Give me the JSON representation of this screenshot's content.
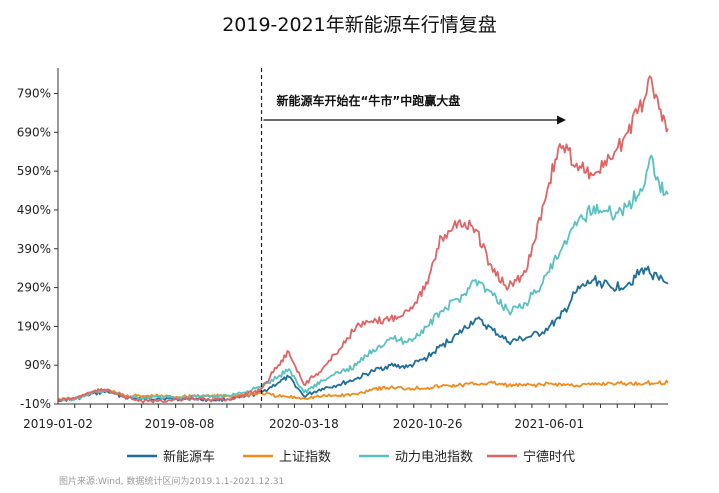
{
  "chart_data": {
    "type": "line",
    "title": "2019-2021年新能源车行情复盘",
    "xlabel": "",
    "ylabel": "",
    "x_range": [
      "2019-01-02",
      "2021-12-31"
    ],
    "ylim": [
      -10,
      830
    ],
    "y_ticks": [
      "-10%",
      "90%",
      "190%",
      "290%",
      "390%",
      "490%",
      "590%",
      "690%",
      "790%"
    ],
    "y_tick_values": [
      -10,
      90,
      190,
      290,
      390,
      490,
      590,
      690,
      790
    ],
    "x_ticks": [
      "2019-01-02",
      "2019-08-08",
      "2020-03-18",
      "2020-10-26",
      "2021-06-01"
    ],
    "x_tick_dates": [
      "2019-01-02",
      "2019-08-08",
      "2020-03-18",
      "2020-10-26",
      "2021-06-01"
    ],
    "grid": false,
    "legend_position": "bottom",
    "annotation": {
      "text": "新能源车开始在“牛市”中跑赢大盘",
      "date": "2020-01-02"
    },
    "series": [
      {
        "name": "新能源车",
        "color": "#1f6e9a",
        "points": [
          [
            "2019-01-02",
            0
          ],
          [
            "2019-02-01",
            2
          ],
          [
            "2019-03-01",
            15
          ],
          [
            "2019-04-01",
            22
          ],
          [
            "2019-05-01",
            8
          ],
          [
            "2019-06-01",
            3
          ],
          [
            "2019-07-01",
            5
          ],
          [
            "2019-08-08",
            2
          ],
          [
            "2019-09-01",
            4
          ],
          [
            "2019-10-01",
            0
          ],
          [
            "2019-11-01",
            2
          ],
          [
            "2019-12-02",
            8
          ],
          [
            "2020-01-02",
            20
          ],
          [
            "2020-02-01",
            45
          ],
          [
            "2020-02-20",
            60
          ],
          [
            "2020-03-18",
            10
          ],
          [
            "2020-04-20",
            30
          ],
          [
            "2020-05-20",
            40
          ],
          [
            "2020-06-20",
            55
          ],
          [
            "2020-07-20",
            75
          ],
          [
            "2020-08-20",
            90
          ],
          [
            "2020-09-20",
            85
          ],
          [
            "2020-10-26",
            110
          ],
          [
            "2020-11-20",
            140
          ],
          [
            "2020-12-20",
            170
          ],
          [
            "2021-01-20",
            210
          ],
          [
            "2021-02-20",
            180
          ],
          [
            "2021-03-20",
            150
          ],
          [
            "2021-04-20",
            160
          ],
          [
            "2021-05-20",
            175
          ],
          [
            "2021-06-01",
            190
          ],
          [
            "2021-06-20",
            210
          ],
          [
            "2021-07-20",
            280
          ],
          [
            "2021-08-20",
            310
          ],
          [
            "2021-09-20",
            290
          ],
          [
            "2021-10-20",
            300
          ],
          [
            "2021-11-20",
            340
          ],
          [
            "2021-12-15",
            310
          ],
          [
            "2021-12-31",
            300
          ]
        ]
      },
      {
        "name": "上证指数",
        "color": "#f08c1e",
        "points": [
          [
            "2019-01-02",
            0
          ],
          [
            "2019-02-01",
            3
          ],
          [
            "2019-03-01",
            18
          ],
          [
            "2019-04-01",
            25
          ],
          [
            "2019-05-01",
            12
          ],
          [
            "2019-06-01",
            10
          ],
          [
            "2019-07-01",
            11
          ],
          [
            "2019-08-08",
            8
          ],
          [
            "2019-09-01",
            12
          ],
          [
            "2019-10-01",
            10
          ],
          [
            "2019-11-01",
            11
          ],
          [
            "2019-12-02",
            12
          ],
          [
            "2020-01-02",
            18
          ],
          [
            "2020-02-01",
            10
          ],
          [
            "2020-03-18",
            5
          ],
          [
            "2020-04-20",
            10
          ],
          [
            "2020-05-20",
            12
          ],
          [
            "2020-06-20",
            15
          ],
          [
            "2020-07-20",
            30
          ],
          [
            "2020-08-20",
            32
          ],
          [
            "2020-09-20",
            30
          ],
          [
            "2020-10-26",
            32
          ],
          [
            "2020-11-20",
            36
          ],
          [
            "2020-12-20",
            38
          ],
          [
            "2021-01-20",
            42
          ],
          [
            "2021-02-20",
            44
          ],
          [
            "2021-03-20",
            38
          ],
          [
            "2021-04-20",
            38
          ],
          [
            "2021-05-20",
            40
          ],
          [
            "2021-06-01",
            42
          ],
          [
            "2021-07-20",
            38
          ],
          [
            "2021-08-20",
            40
          ],
          [
            "2021-09-20",
            44
          ],
          [
            "2021-10-20",
            42
          ],
          [
            "2021-11-20",
            44
          ],
          [
            "2021-12-31",
            45
          ]
        ]
      },
      {
        "name": "动力电池指数",
        "color": "#5ac1c2",
        "points": [
          [
            "2019-01-02",
            0
          ],
          [
            "2019-02-01",
            3
          ],
          [
            "2019-03-01",
            18
          ],
          [
            "2019-04-01",
            25
          ],
          [
            "2019-05-01",
            10
          ],
          [
            "2019-06-01",
            5
          ],
          [
            "2019-07-01",
            8
          ],
          [
            "2019-08-08",
            6
          ],
          [
            "2019-09-01",
            10
          ],
          [
            "2019-10-01",
            8
          ],
          [
            "2019-11-01",
            12
          ],
          [
            "2019-12-02",
            20
          ],
          [
            "2020-01-02",
            35
          ],
          [
            "2020-02-01",
            60
          ],
          [
            "2020-02-20",
            80
          ],
          [
            "2020-03-18",
            20
          ],
          [
            "2020-04-20",
            50
          ],
          [
            "2020-05-20",
            70
          ],
          [
            "2020-06-20",
            90
          ],
          [
            "2020-07-20",
            130
          ],
          [
            "2020-08-20",
            160
          ],
          [
            "2020-09-20",
            150
          ],
          [
            "2020-10-26",
            190
          ],
          [
            "2020-11-20",
            230
          ],
          [
            "2020-12-20",
            260
          ],
          [
            "2021-01-20",
            310
          ],
          [
            "2021-02-20",
            270
          ],
          [
            "2021-03-20",
            230
          ],
          [
            "2021-04-20",
            250
          ],
          [
            "2021-05-20",
            300
          ],
          [
            "2021-06-01",
            330
          ],
          [
            "2021-06-20",
            380
          ],
          [
            "2021-07-20",
            450
          ],
          [
            "2021-08-20",
            500
          ],
          [
            "2021-09-20",
            480
          ],
          [
            "2021-10-20",
            500
          ],
          [
            "2021-11-20",
            560
          ],
          [
            "2021-12-01",
            630
          ],
          [
            "2021-12-15",
            560
          ],
          [
            "2021-12-31",
            530
          ]
        ]
      },
      {
        "name": "宁德时代",
        "color": "#e06464",
        "points": [
          [
            "2019-01-02",
            0
          ],
          [
            "2019-02-01",
            5
          ],
          [
            "2019-03-01",
            20
          ],
          [
            "2019-04-01",
            28
          ],
          [
            "2019-05-01",
            8
          ],
          [
            "2019-06-01",
            -3
          ],
          [
            "2019-07-01",
            -2
          ],
          [
            "2019-08-08",
            0
          ],
          [
            "2019-09-01",
            5
          ],
          [
            "2019-10-01",
            0
          ],
          [
            "2019-11-01",
            2
          ],
          [
            "2019-12-02",
            12
          ],
          [
            "2020-01-02",
            30
          ],
          [
            "2020-02-01",
            90
          ],
          [
            "2020-02-20",
            125
          ],
          [
            "2020-03-18",
            40
          ],
          [
            "2020-04-20",
            80
          ],
          [
            "2020-05-20",
            130
          ],
          [
            "2020-06-20",
            190
          ],
          [
            "2020-07-20",
            200
          ],
          [
            "2020-08-20",
            210
          ],
          [
            "2020-09-20",
            230
          ],
          [
            "2020-10-26",
            300
          ],
          [
            "2020-11-20",
            420
          ],
          [
            "2020-12-20",
            460
          ],
          [
            "2021-01-20",
            440
          ],
          [
            "2021-02-20",
            330
          ],
          [
            "2021-03-20",
            290
          ],
          [
            "2021-04-20",
            330
          ],
          [
            "2021-05-20",
            500
          ],
          [
            "2021-06-01",
            560
          ],
          [
            "2021-06-20",
            660
          ],
          [
            "2021-07-20",
            610
          ],
          [
            "2021-08-20",
            580
          ],
          [
            "2021-09-20",
            620
          ],
          [
            "2021-10-20",
            690
          ],
          [
            "2021-11-20",
            780
          ],
          [
            "2021-12-01",
            830
          ],
          [
            "2021-12-15",
            750
          ],
          [
            "2021-12-31",
            700
          ]
        ]
      }
    ]
  },
  "source_note": "图片来源:Wind, 数据统计区间为2019.1.1-2021.12.31"
}
